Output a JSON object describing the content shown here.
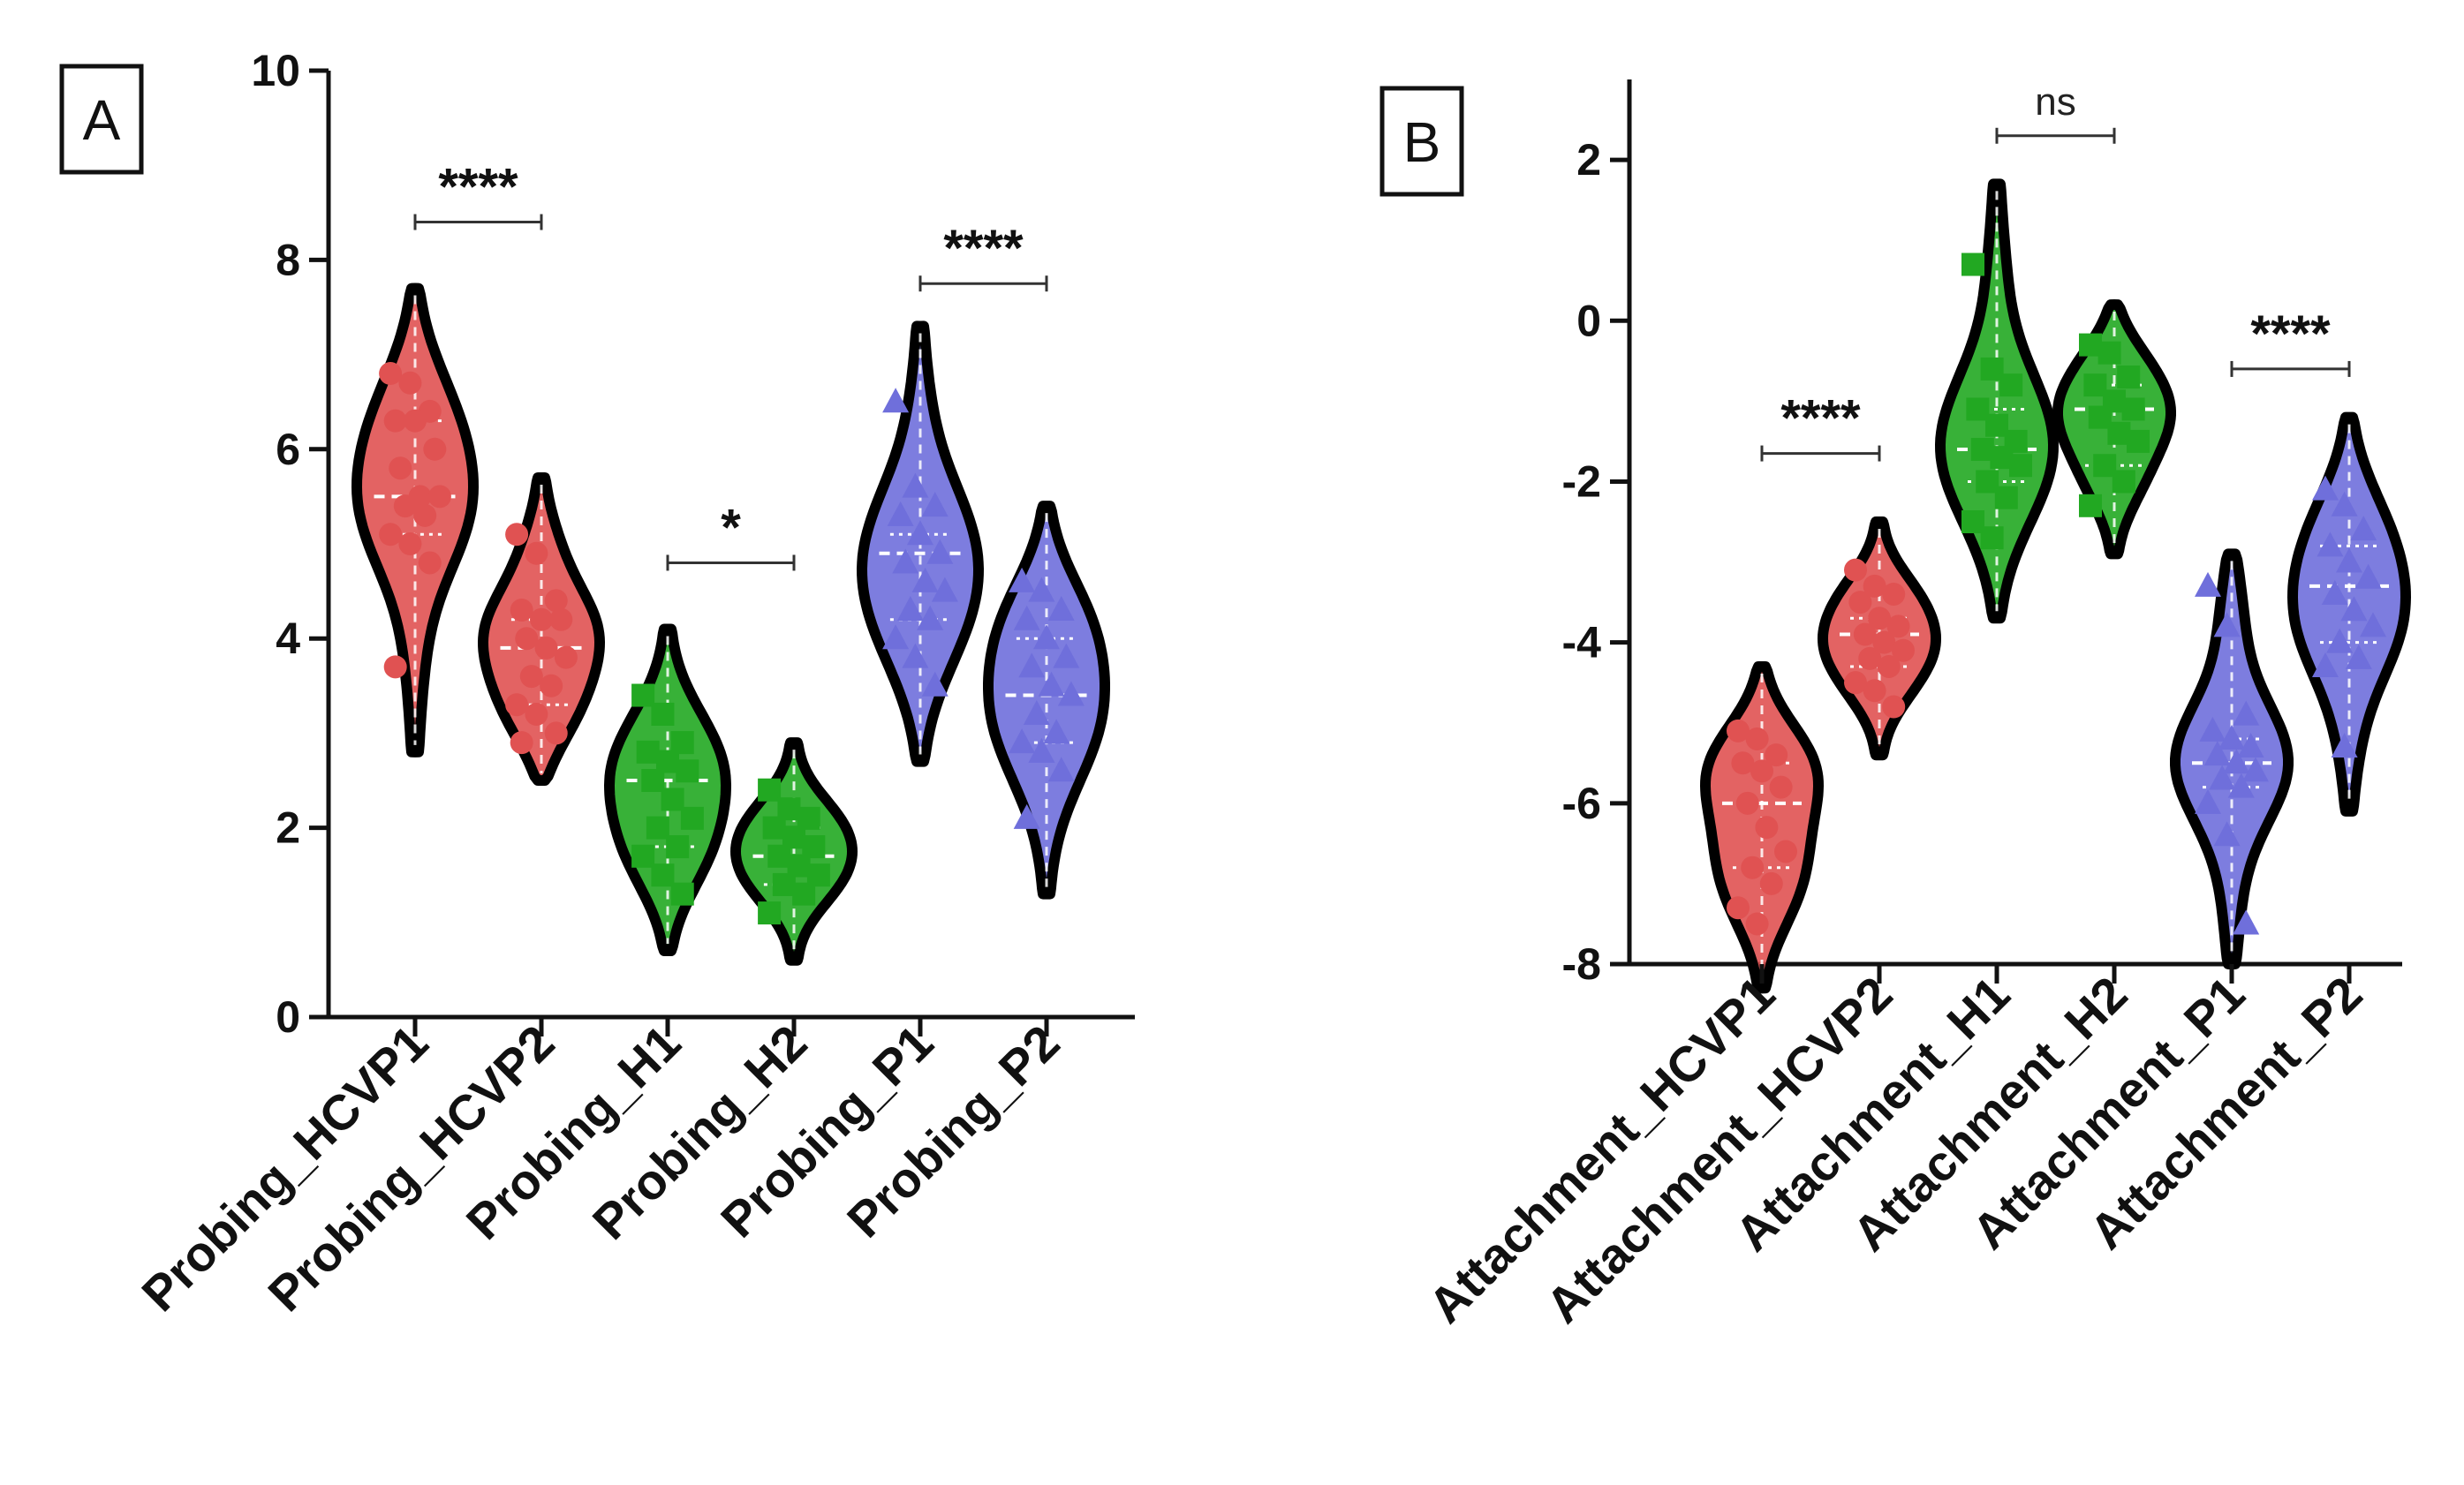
{
  "chart_data": [
    {
      "type": "violin",
      "panel_label": "A",
      "categories": [
        "Probing_HCVP1",
        "Probing_HCVP2",
        "Probing_H1",
        "Probing_H2",
        "Probing_P1",
        "Probing_P2"
      ],
      "ylim": [
        0,
        10
      ],
      "yticks": [
        "0",
        "2",
        "4",
        "6",
        "8",
        "10"
      ],
      "series": [
        {
          "name": "Probing_HCVP1",
          "color": "#e05252",
          "marker": "circle",
          "range": [
            2.8,
            7.7
          ],
          "median": 5.5,
          "points": [
            6.8,
            6.7,
            6.4,
            6.3,
            6.3,
            6.0,
            5.8,
            5.5,
            5.5,
            5.4,
            5.3,
            5.1,
            5.0,
            4.8,
            3.7
          ]
        },
        {
          "name": "Probing_HCVP2",
          "color": "#e05252",
          "marker": "circle",
          "range": [
            2.5,
            5.7
          ],
          "median": 3.9,
          "points": [
            5.1,
            4.9,
            4.4,
            4.3,
            4.2,
            4.2,
            4.0,
            3.9,
            3.8,
            3.6,
            3.5,
            3.3,
            3.2,
            3.0,
            2.9
          ]
        },
        {
          "name": "Probing_H1",
          "color": "#22a822",
          "marker": "square",
          "range": [
            0.7,
            4.1
          ],
          "median": 2.5,
          "points": [
            3.4,
            3.2,
            2.9,
            2.8,
            2.7,
            2.6,
            2.5,
            2.3,
            2.1,
            2.0,
            1.8,
            1.7,
            1.5,
            1.3
          ]
        },
        {
          "name": "Probing_H2",
          "color": "#22a822",
          "marker": "square",
          "range": [
            0.6,
            2.9
          ],
          "median": 1.7,
          "points": [
            2.4,
            2.2,
            2.1,
            2.0,
            1.9,
            1.8,
            1.7,
            1.6,
            1.5,
            1.4,
            1.3,
            1.1
          ]
        },
        {
          "name": "Probing_P1",
          "color": "#6f6fdb",
          "marker": "triangle",
          "range": [
            2.7,
            7.3
          ],
          "median": 4.9,
          "points": [
            6.5,
            5.6,
            5.4,
            5.3,
            5.1,
            4.9,
            4.8,
            4.6,
            4.5,
            4.3,
            4.2,
            4.0,
            3.8,
            3.5
          ]
        },
        {
          "name": "Probing_P2",
          "color": "#6f6fdb",
          "marker": "triangle",
          "range": [
            1.3,
            5.4
          ],
          "median": 3.4,
          "points": [
            4.6,
            4.5,
            4.3,
            4.2,
            4.0,
            3.8,
            3.7,
            3.5,
            3.4,
            3.2,
            3.0,
            2.9,
            2.8,
            2.6,
            2.1
          ]
        }
      ],
      "comparisons": [
        {
          "from": 0,
          "to": 1,
          "y": 8.4,
          "label": "****"
        },
        {
          "from": 2,
          "to": 3,
          "y": 4.8,
          "label": "*"
        },
        {
          "from": 4,
          "to": 5,
          "y": 7.75,
          "label": "****"
        }
      ]
    },
    {
      "type": "violin",
      "panel_label": "B",
      "categories": [
        "Attachment_HCVP1",
        "Attachment_HCVP2",
        "Attachment_H1",
        "Attachment_H2",
        "Attachment_P1",
        "Attachment_P2"
      ],
      "ylim": [
        -8,
        3
      ],
      "yticks": [
        "-8",
        "-6",
        "-4",
        "-2",
        "0",
        "2"
      ],
      "series": [
        {
          "name": "Attachment_HCVP1",
          "color": "#e05252",
          "marker": "circle",
          "range": [
            -8.3,
            -4.3
          ],
          "median": -6.0,
          "points": [
            -5.1,
            -5.2,
            -5.4,
            -5.5,
            -5.6,
            -5.8,
            -6.0,
            -6.3,
            -6.6,
            -6.8,
            -7.0,
            -7.3,
            -7.5
          ]
        },
        {
          "name": "Attachment_HCVP2",
          "color": "#e05252",
          "marker": "circle",
          "range": [
            -5.4,
            -2.5
          ],
          "median": -3.9,
          "points": [
            -3.1,
            -3.3,
            -3.4,
            -3.5,
            -3.7,
            -3.8,
            -3.9,
            -4.0,
            -4.1,
            -4.2,
            -4.3,
            -4.5,
            -4.6,
            -4.8
          ]
        },
        {
          "name": "Attachment_H1",
          "color": "#22a822",
          "marker": "square",
          "range": [
            -3.7,
            1.7
          ],
          "median": -1.6,
          "points": [
            0.7,
            -0.6,
            -0.8,
            -1.1,
            -1.3,
            -1.5,
            -1.6,
            -1.7,
            -1.8,
            -2.0,
            -2.2,
            -2.5,
            -2.7
          ]
        },
        {
          "name": "Attachment_H2",
          "color": "#22a822",
          "marker": "square",
          "range": [
            -2.9,
            0.2
          ],
          "median": -1.1,
          "points": [
            -0.3,
            -0.4,
            -0.7,
            -0.8,
            -1.0,
            -1.1,
            -1.2,
            -1.4,
            -1.5,
            -1.8,
            -2.0,
            -2.3
          ]
        },
        {
          "name": "Attachment_P1",
          "color": "#6f6fdb",
          "marker": "triangle",
          "range": [
            -8.0,
            -2.9
          ],
          "median": -5.5,
          "points": [
            -3.3,
            -3.8,
            -4.9,
            -5.1,
            -5.2,
            -5.3,
            -5.4,
            -5.5,
            -5.6,
            -5.7,
            -5.8,
            -6.0,
            -6.4,
            -7.5
          ]
        },
        {
          "name": "Attachment_P2",
          "color": "#6f6fdb",
          "marker": "triangle",
          "range": [
            -6.1,
            -1.2
          ],
          "median": -3.3,
          "points": [
            -2.1,
            -2.3,
            -2.6,
            -2.8,
            -3.0,
            -3.2,
            -3.4,
            -3.6,
            -3.8,
            -4.0,
            -4.2,
            -4.3,
            -5.3
          ]
        }
      ],
      "comparisons": [
        {
          "from": 0,
          "to": 1,
          "y": -1.65,
          "label": "****"
        },
        {
          "from": 2,
          "to": 3,
          "y": 2.3,
          "label": "ns"
        },
        {
          "from": 4,
          "to": 5,
          "y": -0.6,
          "label": "****"
        }
      ]
    }
  ]
}
